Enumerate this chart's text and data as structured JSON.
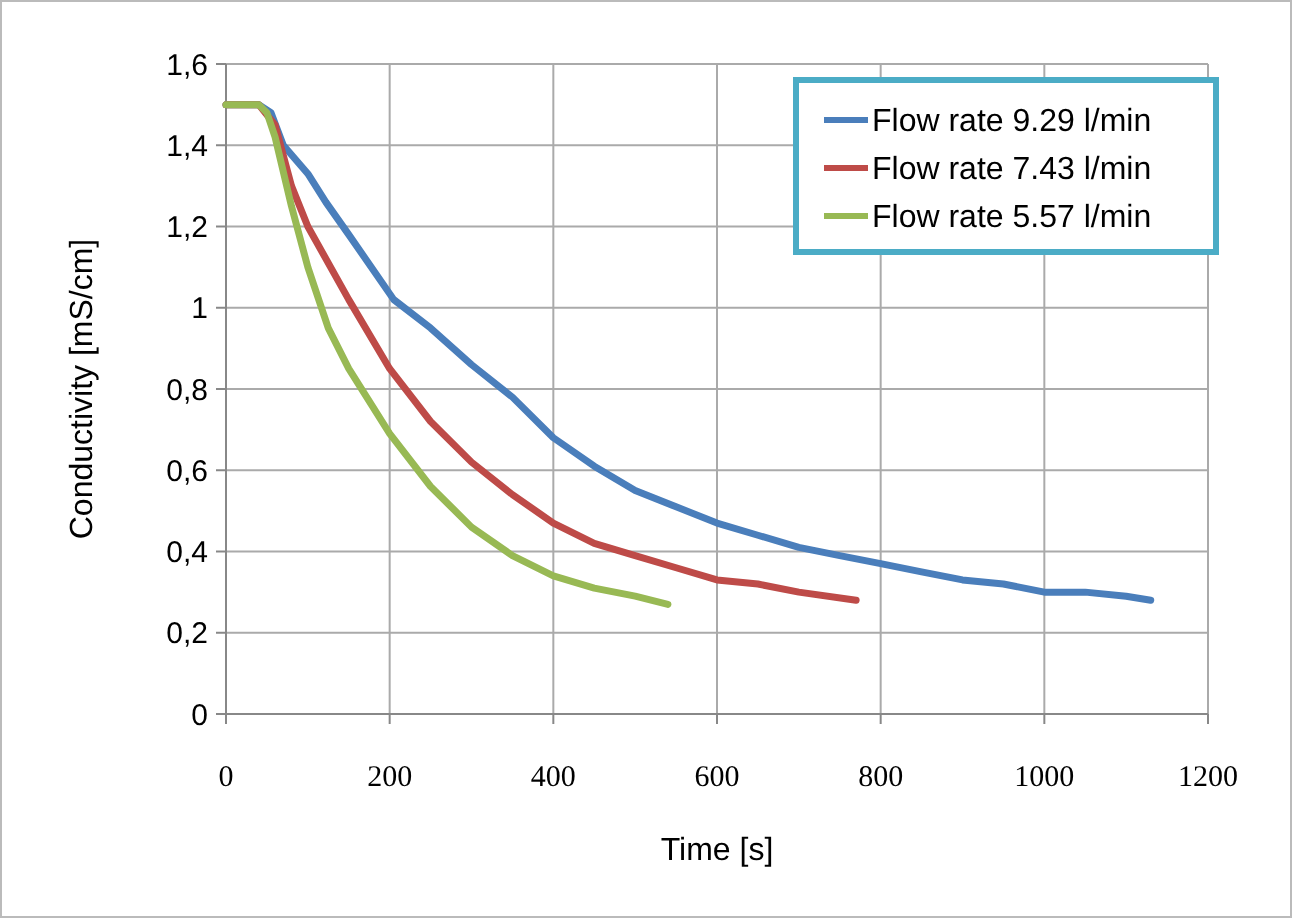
{
  "chart_data": {
    "type": "line",
    "xlabel": "Time [s]",
    "ylabel": "Conductivity [mS/cm]",
    "xlim": [
      0,
      1200
    ],
    "xticks": [
      0,
      200,
      400,
      600,
      800,
      1000,
      1200
    ],
    "ylim": [
      0,
      1.6
    ],
    "yticks": [
      0,
      {
        "value": 0.2,
        "label": "0,2"
      },
      {
        "value": 0.4,
        "label": "0,4"
      },
      {
        "value": 0.6,
        "label": "0,6"
      },
      {
        "value": 0.8,
        "label": "0,8"
      },
      1,
      {
        "value": 1.2,
        "label": "1,2"
      },
      {
        "value": 1.4,
        "label": "1,4"
      },
      {
        "value": 1.6,
        "label": "1,6"
      }
    ],
    "grid": true,
    "legend": "top right",
    "marker": "none",
    "line_style": "solid",
    "series": [
      {
        "name": "Flow rate 9.29 l/min",
        "color": "#4a7ebb",
        "x": [
          0,
          40,
          55,
          70,
          100,
          122,
          150,
          205,
          250,
          300,
          350,
          400,
          450,
          500,
          550,
          600,
          650,
          700,
          750,
          800,
          850,
          900,
          950,
          1000,
          1050,
          1100,
          1130
        ],
        "values": [
          1.5,
          1.5,
          1.48,
          1.4,
          1.33,
          1.26,
          1.18,
          1.02,
          0.95,
          0.86,
          0.78,
          0.68,
          0.61,
          0.55,
          0.51,
          0.47,
          0.44,
          0.41,
          0.39,
          0.37,
          0.35,
          0.33,
          0.32,
          0.3,
          0.3,
          0.29,
          0.28
        ]
      },
      {
        "name": "Flow rate 7.43 l/min",
        "color": "#be4b48",
        "x": [
          0,
          40,
          60,
          80,
          100,
          150,
          200,
          250,
          300,
          350,
          400,
          450,
          500,
          550,
          600,
          650,
          700,
          770
        ],
        "values": [
          1.5,
          1.5,
          1.45,
          1.3,
          1.2,
          1.02,
          0.85,
          0.72,
          0.62,
          0.54,
          0.47,
          0.42,
          0.39,
          0.36,
          0.33,
          0.32,
          0.3,
          0.28
        ]
      },
      {
        "name": "Flow rate 5.57 l/min",
        "color": "#98b954",
        "x": [
          0,
          40,
          50,
          60,
          80,
          100,
          125,
          150,
          200,
          250,
          300,
          350,
          400,
          450,
          500,
          540
        ],
        "values": [
          1.5,
          1.5,
          1.48,
          1.42,
          1.25,
          1.1,
          0.95,
          0.85,
          0.69,
          0.56,
          0.46,
          0.39,
          0.34,
          0.31,
          0.29,
          0.27
        ]
      }
    ]
  }
}
